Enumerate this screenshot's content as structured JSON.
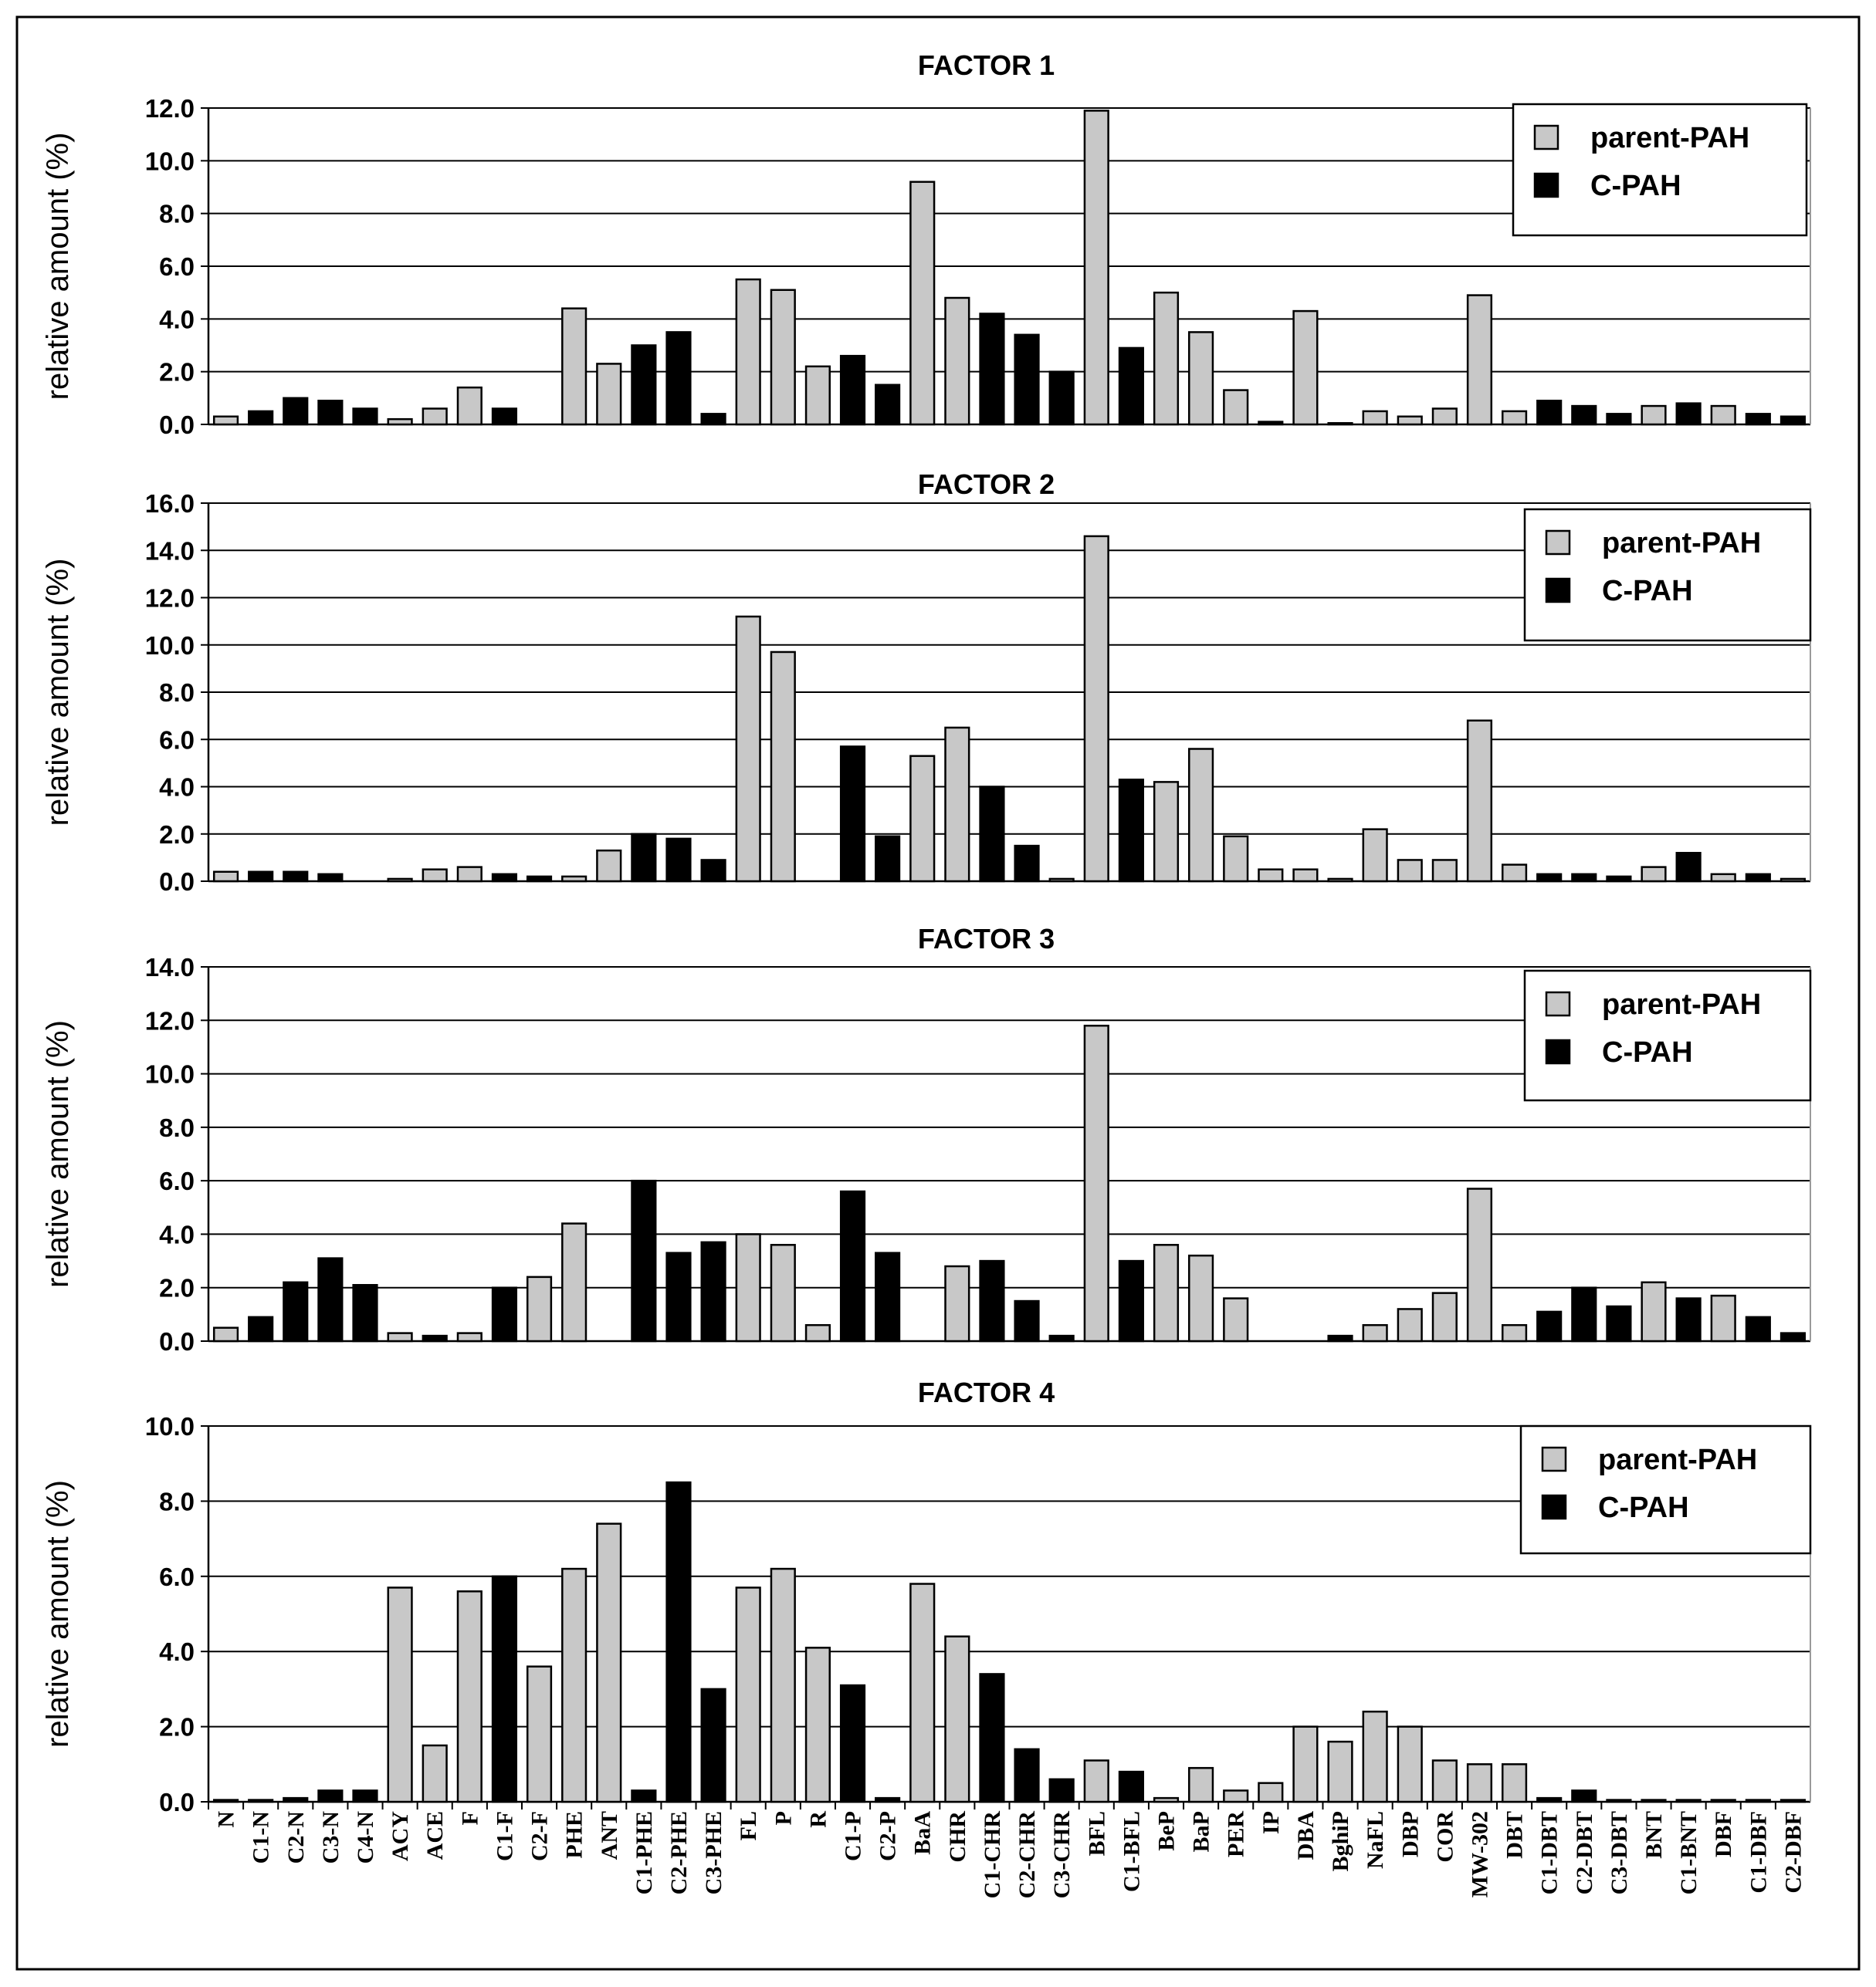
{
  "chart_data": [
    {
      "type": "bar",
      "title": "FACTOR 1",
      "xlabel": "",
      "ylabel": "relative amount (%)",
      "ylim": [
        0,
        12
      ],
      "yticks": [
        "0.0",
        "2.0",
        "4.0",
        "6.0",
        "8.0",
        "10.0",
        "12.0"
      ],
      "categories": [
        "N",
        "C1-N",
        "C2-N",
        "C3-N",
        "C4-N",
        "ACY",
        "ACE",
        "F",
        "C1-F",
        "C2-F",
        "PHE",
        "ANT",
        "C1-PHE",
        "C2-PHE",
        "C3-PHE",
        "FL",
        "P",
        "R",
        "C1-P",
        "C2-P",
        "BaA",
        "CHR",
        "C1-CHR",
        "C2-CHR",
        "C3-CHR",
        "BFL",
        "C1-BFL",
        "BeP",
        "BaP",
        "PER",
        "IP",
        "DBA",
        "BghiP",
        "NaFL",
        "DBP",
        "COR",
        "MW-302",
        "DBT",
        "C1-DBT",
        "C2-DBT",
        "C3-DBT",
        "BNT",
        "C1-BNT",
        "DBF",
        "C1-DBF",
        "C2-DBF"
      ],
      "values": [
        0.3,
        0.5,
        1.0,
        0.9,
        0.6,
        0.2,
        0.6,
        1.4,
        0.6,
        0,
        4.4,
        2.3,
        3.0,
        3.5,
        0.4,
        5.5,
        5.1,
        2.2,
        2.6,
        1.5,
        9.2,
        4.8,
        4.2,
        3.4,
        2.0,
        11.9,
        2.9,
        5.0,
        3.5,
        1.3,
        0.1,
        4.3,
        0.05,
        0.5,
        0.3,
        0.6,
        4.9,
        0.5,
        0.9,
        0.7,
        0.4,
        0.7,
        0.8,
        0.7,
        0.4,
        0.3
      ],
      "kind": [
        "parent",
        "C",
        "C",
        "C",
        "C",
        "parent",
        "parent",
        "parent",
        "C",
        "C",
        "parent",
        "parent",
        "C",
        "C",
        "C",
        "parent",
        "parent",
        "parent",
        "C",
        "C",
        "parent",
        "parent",
        "C",
        "C",
        "C",
        "parent",
        "C",
        "parent",
        "parent",
        "parent",
        "C",
        "parent",
        "parent",
        "parent",
        "parent",
        "parent",
        "parent",
        "parent",
        "C",
        "C",
        "C",
        "parent",
        "C",
        "parent",
        "C",
        "C"
      ],
      "series": [
        {
          "name": "parent-PAH",
          "color": "#c8c8c8"
        },
        {
          "name": "C-PAH",
          "color": "#000000"
        }
      ],
      "legend_position": "top-right"
    },
    {
      "type": "bar",
      "title": "FACTOR 2",
      "xlabel": "",
      "ylabel": "relative amount (%)",
      "ylim": [
        0,
        16
      ],
      "yticks": [
        "0.0",
        "2.0",
        "4.0",
        "6.0",
        "8.0",
        "10.0",
        "12.0",
        "14.0",
        "16.0"
      ],
      "categories": [
        "N",
        "C1-N",
        "C2-N",
        "C3-N",
        "C4-N",
        "ACY",
        "ACE",
        "F",
        "C1-F",
        "C2-F",
        "PHE",
        "ANT",
        "C1-PHE",
        "C2-PHE",
        "C3-PHE",
        "FL",
        "P",
        "R",
        "C1-P",
        "C2-P",
        "BaA",
        "CHR",
        "C1-CHR",
        "C2-CHR",
        "C3-CHR",
        "BFL",
        "C1-BFL",
        "BeP",
        "BaP",
        "PER",
        "IP",
        "DBA",
        "BghiP",
        "NaFL",
        "DBP",
        "COR",
        "MW-302",
        "DBT",
        "C1-DBT",
        "C2-DBT",
        "C3-DBT",
        "BNT",
        "C1-BNT",
        "DBF",
        "C1-DBF",
        "C2-DBF"
      ],
      "values": [
        0.4,
        0.4,
        0.4,
        0.3,
        0,
        0.1,
        0.5,
        0.6,
        0.3,
        0.2,
        0.2,
        1.3,
        2.0,
        1.8,
        0.9,
        11.2,
        9.7,
        0,
        5.7,
        1.9,
        5.3,
        6.5,
        4.0,
        1.5,
        0.1,
        14.6,
        4.3,
        4.2,
        5.6,
        1.9,
        0.5,
        0.5,
        0.1,
        2.2,
        0.9,
        0.9,
        6.8,
        0.7,
        0.3,
        0.3,
        0.2,
        0.6,
        1.2,
        0.3,
        0.3,
        0.1
      ],
      "kind": [
        "parent",
        "C",
        "C",
        "C",
        "C",
        "parent",
        "parent",
        "parent",
        "C",
        "C",
        "parent",
        "parent",
        "C",
        "C",
        "C",
        "parent",
        "parent",
        "parent",
        "C",
        "C",
        "parent",
        "parent",
        "C",
        "C",
        "parent",
        "parent",
        "C",
        "parent",
        "parent",
        "parent",
        "parent",
        "parent",
        "parent",
        "parent",
        "parent",
        "parent",
        "parent",
        "parent",
        "C",
        "C",
        "C",
        "parent",
        "C",
        "parent",
        "C",
        "parent"
      ],
      "series": [
        {
          "name": "parent-PAH",
          "color": "#c8c8c8"
        },
        {
          "name": "C-PAH",
          "color": "#000000"
        }
      ],
      "legend_position": "top-right"
    },
    {
      "type": "bar",
      "title": "FACTOR 3",
      "xlabel": "",
      "ylabel": "relative amount (%)",
      "ylim": [
        0,
        14
      ],
      "yticks": [
        "0.0",
        "2.0",
        "4.0",
        "6.0",
        "8.0",
        "10.0",
        "12.0",
        "14.0"
      ],
      "categories": [
        "N",
        "C1-N",
        "C2-N",
        "C3-N",
        "C4-N",
        "ACY",
        "ACE",
        "F",
        "C1-F",
        "C2-F",
        "PHE",
        "ANT",
        "C1-PHE",
        "C2-PHE",
        "C3-PHE",
        "FL",
        "P",
        "R",
        "C1-P",
        "C2-P",
        "BaA",
        "CHR",
        "C1-CHR",
        "C2-CHR",
        "C3-CHR",
        "BFL",
        "C1-BFL",
        "BeP",
        "BaP",
        "PER",
        "IP",
        "DBA",
        "BghiP",
        "NaFL",
        "DBP",
        "COR",
        "MW-302",
        "DBT",
        "C1-DBT",
        "C2-DBT",
        "C3-DBT",
        "BNT",
        "C1-BNT",
        "DBF",
        "C1-DBF",
        "C2-DBF"
      ],
      "values": [
        0.5,
        0.9,
        2.2,
        3.1,
        2.1,
        0.3,
        0.2,
        0.3,
        2.0,
        2.4,
        4.4,
        0,
        6.0,
        3.3,
        3.7,
        4.0,
        3.6,
        0.6,
        5.6,
        3.3,
        0,
        2.8,
        3.0,
        1.5,
        0.2,
        11.8,
        3.0,
        3.6,
        3.2,
        1.6,
        0,
        0,
        0.2,
        0.6,
        1.2,
        1.8,
        5.7,
        0.6,
        1.1,
        2.0,
        1.3,
        2.2,
        1.6,
        1.7,
        0.9,
        0.3
      ],
      "kind": [
        "parent",
        "C",
        "C",
        "C",
        "C",
        "parent",
        "C",
        "parent",
        "C",
        "parent",
        "parent",
        "parent",
        "C",
        "C",
        "C",
        "parent",
        "parent",
        "parent",
        "C",
        "C",
        "parent",
        "parent",
        "C",
        "C",
        "C",
        "parent",
        "C",
        "parent",
        "parent",
        "parent",
        "parent",
        "parent",
        "C",
        "parent",
        "parent",
        "parent",
        "parent",
        "parent",
        "C",
        "C",
        "C",
        "parent",
        "C",
        "parent",
        "C",
        "C"
      ],
      "series": [
        {
          "name": "parent-PAH",
          "color": "#c8c8c8"
        },
        {
          "name": "C-PAH",
          "color": "#000000"
        }
      ],
      "legend_position": "top-right"
    },
    {
      "type": "bar",
      "title": "FACTOR 4",
      "xlabel": "",
      "ylabel": "relative amount (%)",
      "ylim": [
        0,
        10
      ],
      "yticks": [
        "0.0",
        "2.0",
        "4.0",
        "6.0",
        "8.0",
        "10.0"
      ],
      "categories": [
        "N",
        "C1-N",
        "C2-N",
        "C3-N",
        "C4-N",
        "ACY",
        "ACE",
        "F",
        "C1-F",
        "C2-F",
        "PHE",
        "ANT",
        "C1-PHE",
        "C2-PHE",
        "C3-PHE",
        "FL",
        "P",
        "R",
        "C1-P",
        "C2-P",
        "BaA",
        "CHR",
        "C1-CHR",
        "C2-CHR",
        "C3-CHR",
        "BFL",
        "C1-BFL",
        "BeP",
        "BaP",
        "PER",
        "IP",
        "DBA",
        "BghiP",
        "NaFL",
        "DBP",
        "COR",
        "MW-302",
        "DBT",
        "C1-DBT",
        "C2-DBT",
        "C3-DBT",
        "BNT",
        "C1-BNT",
        "DBF",
        "C1-DBF",
        "C2-DBF"
      ],
      "values": [
        0.05,
        0.05,
        0.1,
        0.3,
        0.3,
        5.7,
        1.5,
        5.6,
        6.0,
        3.6,
        6.2,
        7.4,
        0.3,
        8.5,
        3.0,
        5.7,
        6.2,
        4.1,
        3.1,
        0.1,
        5.8,
        4.4,
        3.4,
        1.4,
        0.6,
        1.1,
        0.8,
        0.1,
        0.9,
        0.3,
        0.5,
        2.0,
        1.6,
        2.4,
        2.0,
        1.1,
        1.0,
        1.0,
        0.1,
        0.3,
        0.05,
        0.05,
        0.05,
        0.05,
        0.05,
        0.05
      ],
      "kind": [
        "C",
        "C",
        "C",
        "C",
        "C",
        "parent",
        "parent",
        "parent",
        "C",
        "parent",
        "parent",
        "parent",
        "C",
        "C",
        "C",
        "parent",
        "parent",
        "parent",
        "C",
        "C",
        "parent",
        "parent",
        "C",
        "C",
        "C",
        "parent",
        "C",
        "parent",
        "parent",
        "parent",
        "parent",
        "parent",
        "parent",
        "parent",
        "parent",
        "parent",
        "parent",
        "parent",
        "C",
        "C",
        "C",
        "parent",
        "C",
        "parent",
        "C",
        "C"
      ],
      "series": [
        {
          "name": "parent-PAH",
          "color": "#c8c8c8"
        },
        {
          "name": "C-PAH",
          "color": "#000000"
        }
      ],
      "legend_position": "top-right"
    }
  ]
}
